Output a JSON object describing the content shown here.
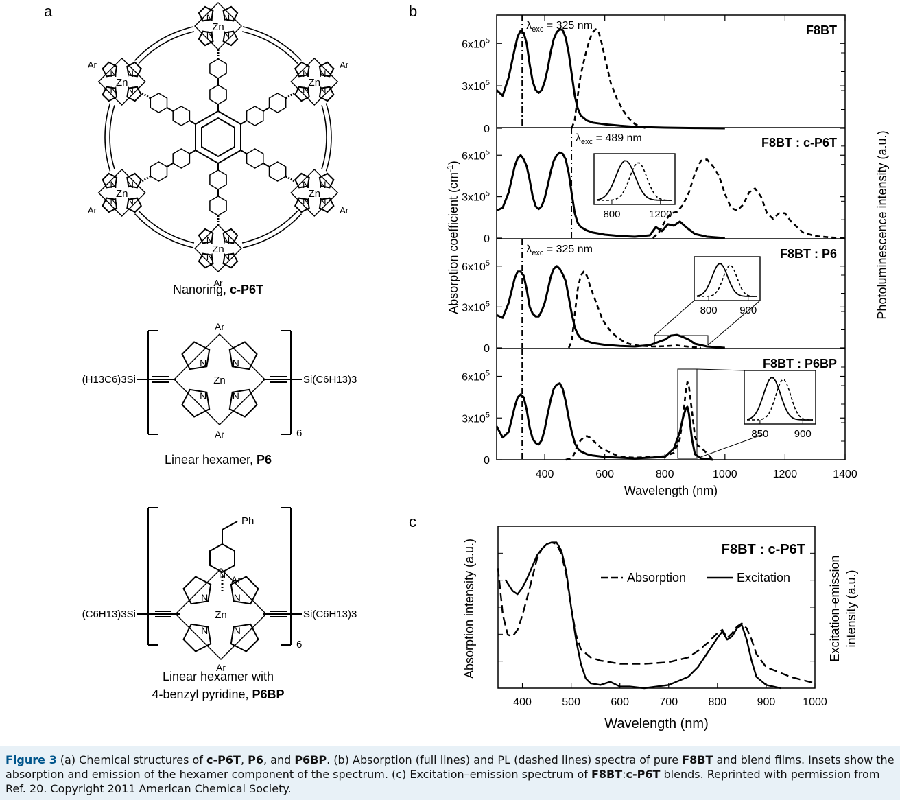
{
  "panels": {
    "a": {
      "letter": "a",
      "structures": [
        {
          "caption_text": "Nanoring, ",
          "caption_bold": "c-P6T"
        },
        {
          "caption_text": "Linear hexamer, ",
          "caption_bold": "P6"
        },
        {
          "caption_line1": "Linear hexamer with",
          "caption_text": "4-benzyl pyridine, ",
          "caption_bold": "P6BP"
        }
      ],
      "atoms": {
        "zn": "Zn",
        "n": "N",
        "ar": "Ar",
        "ph": "Ph",
        "repeat": "6"
      },
      "p6_left_group": "(H13C6)3Si",
      "p6_right_group": "Si(C6H13)3",
      "p6bp_left_group": "(C6H13)3Si",
      "p6bp_right_group": "Si(C6H13)3"
    },
    "b": {
      "letter": "b",
      "ylabel_left": "Absorption coefficient  (cm",
      "ylabel_left_sup": "-1",
      "ylabel_right": "Photoluminescence intensity (a.u.)",
      "xlabel": "Wavelength (nm)"
    },
    "c": {
      "letter": "c"
    }
  },
  "chart_data": [
    {
      "id": "b",
      "type": "line",
      "xlabel": "Wavelength (nm)",
      "ylabel": "Absorption coefficient (cm-1)",
      "ylabel_right": "Photoluminescence intensity (a.u.)",
      "xlim": [
        240,
        1400
      ],
      "xticks": [
        400,
        600,
        800,
        1000,
        1200,
        1400
      ],
      "ylim": [
        0,
        800000
      ],
      "yticks": [
        {
          "v": 0,
          "label": "0"
        },
        {
          "v": 300000,
          "label": "3x10",
          "sup": "5"
        },
        {
          "v": 600000,
          "label": "6x10",
          "sup": "5"
        }
      ],
      "legend": "none",
      "subpanels": [
        {
          "label": "F8BT",
          "excitation_label": "λexc = 325 nm",
          "excitation_nm": 325,
          "series": [
            {
              "style": "solid",
              "x": [
                240,
                260,
                280,
                300,
                310,
                320,
                330,
                340,
                350,
                360,
                370,
                380,
                390,
                400,
                410,
                420,
                430,
                440,
                450,
                460,
                470,
                480,
                490,
                500,
                510,
                520,
                540,
                560,
                600,
                650,
                700,
                800,
                900,
                1000
              ],
              "y": [
                270000,
                230000,
                360000,
                560000,
                650000,
                690000,
                675000,
                600000,
                450000,
                330000,
                270000,
                250000,
                270000,
                330000,
                420000,
                540000,
                630000,
                680000,
                700000,
                695000,
                640000,
                530000,
                380000,
                230000,
                140000,
                90000,
                55000,
                40000,
                28000,
                18000,
                10000,
                5000,
                2000,
                0
              ]
            },
            {
              "style": "dashed",
              "x": [
                490,
                500,
                510,
                520,
                530,
                540,
                550,
                560,
                570,
                580,
                590,
                600,
                610,
                620,
                640,
                660,
                680,
                700,
                720,
                740
              ],
              "y": [
                0,
                60000,
                230000,
                380000,
                470000,
                560000,
                630000,
                680000,
                700000,
                680000,
                600000,
                500000,
                410000,
                320000,
                210000,
                130000,
                70000,
                30000,
                10000,
                0
              ]
            }
          ]
        },
        {
          "label": "F8BT : c-P6T",
          "excitation_label": "λexc = 489 nm",
          "excitation_nm": 489,
          "series": [
            {
              "style": "solid",
              "x": [
                240,
                260,
                280,
                300,
                310,
                320,
                330,
                340,
                350,
                360,
                370,
                380,
                390,
                400,
                410,
                420,
                430,
                440,
                450,
                460,
                470,
                480,
                490,
                500,
                510,
                520,
                540,
                560,
                600,
                650,
                700,
                750,
                770,
                790,
                810,
                830,
                850,
                870,
                900,
                940,
                1000
              ],
              "y": [
                200000,
                220000,
                330000,
                520000,
                580000,
                600000,
                570000,
                520000,
                420000,
                300000,
                230000,
                210000,
                230000,
                290000,
                380000,
                480000,
                560000,
                600000,
                620000,
                610000,
                570000,
                470000,
                320000,
                180000,
                110000,
                80000,
                55000,
                40000,
                25000,
                15000,
                10000,
                20000,
                80000,
                50000,
                100000,
                90000,
                120000,
                80000,
                30000,
                10000,
                0
              ]
            },
            {
              "style": "dashed",
              "x": [
                760,
                780,
                800,
                820,
                840,
                860,
                880,
                900,
                920,
                940,
                960,
                980,
                1000,
                1020,
                1040,
                1060,
                1080,
                1100,
                1120,
                1140,
                1160,
                1180,
                1200,
                1220,
                1260,
                1300,
                1350,
                1400
              ],
              "y": [
                0,
                40000,
                120000,
                180000,
                190000,
                240000,
                330000,
                470000,
                560000,
                570000,
                520000,
                450000,
                320000,
                220000,
                200000,
                240000,
                330000,
                360000,
                300000,
                180000,
                140000,
                180000,
                180000,
                120000,
                40000,
                15000,
                5000,
                0
              ]
            }
          ],
          "inset": {
            "xticks": [
              800,
              1200
            ]
          }
        },
        {
          "label": "F8BT : P6",
          "excitation_label": "λexc = 325 nm",
          "excitation_nm": 325,
          "series": [
            {
              "style": "solid",
              "x": [
                240,
                260,
                280,
                300,
                310,
                320,
                330,
                340,
                350,
                360,
                370,
                380,
                390,
                400,
                410,
                420,
                430,
                440,
                450,
                460,
                470,
                480,
                490,
                500,
                510,
                520,
                540,
                560,
                600,
                650,
                700,
                750,
                780,
                800,
                820,
                840,
                860,
                880,
                900,
                940,
                1000
              ],
              "y": [
                240000,
                220000,
                330000,
                510000,
                560000,
                560000,
                530000,
                430000,
                300000,
                250000,
                230000,
                230000,
                270000,
                330000,
                420000,
                520000,
                580000,
                600000,
                580000,
                540000,
                490000,
                370000,
                250000,
                150000,
                100000,
                70000,
                50000,
                35000,
                22000,
                14000,
                10000,
                20000,
                45000,
                60000,
                90000,
                95000,
                80000,
                60000,
                30000,
                10000,
                0
              ]
            },
            {
              "style": "dashed",
              "x": [
                480,
                490,
                500,
                510,
                520,
                530,
                540,
                550,
                560,
                570,
                580,
                590,
                600,
                620,
                640,
                660,
                680,
                700,
                720,
                760,
                800,
                840,
                880,
                920
              ],
              "y": [
                0,
                50000,
                250000,
                430000,
                530000,
                560000,
                530000,
                460000,
                400000,
                340000,
                280000,
                220000,
                180000,
                120000,
                80000,
                50000,
                30000,
                20000,
                15000,
                10000,
                12000,
                18000,
                8000,
                0
              ]
            }
          ],
          "inset": {
            "xticks": [
              800,
              900
            ]
          }
        },
        {
          "label": "F8BT : P6BP",
          "excitation_label": "",
          "excitation_nm": 325,
          "series": [
            {
              "style": "solid",
              "x": [
                240,
                260,
                280,
                300,
                310,
                320,
                330,
                340,
                350,
                360,
                370,
                380,
                390,
                400,
                410,
                420,
                430,
                440,
                450,
                460,
                470,
                480,
                490,
                500,
                510,
                520,
                540,
                560,
                600,
                650,
                700,
                750,
                800,
                830,
                850,
                860,
                870,
                875,
                880,
                890,
                900,
                920,
                960
              ],
              "y": [
                240000,
                160000,
                200000,
                380000,
                450000,
                470000,
                450000,
                360000,
                230000,
                150000,
                120000,
                110000,
                140000,
                220000,
                330000,
                430000,
                510000,
                540000,
                550000,
                510000,
                420000,
                300000,
                200000,
                120000,
                80000,
                60000,
                40000,
                30000,
                20000,
                15000,
                10000,
                15000,
                20000,
                80000,
                200000,
                300000,
                370000,
                380000,
                330000,
                150000,
                40000,
                10000,
                0
              ]
            },
            {
              "style": "dashed",
              "x": [
                470,
                490,
                500,
                510,
                520,
                530,
                540,
                550,
                560,
                570,
                580,
                590,
                600,
                620,
                640,
                660,
                700,
                750,
                800,
                830,
                850,
                860,
                870,
                875,
                880,
                890,
                900,
                910,
                920,
                960
              ],
              "y": [
                0,
                10000,
                50000,
                110000,
                140000,
                160000,
                170000,
                160000,
                140000,
                120000,
                100000,
                80000,
                70000,
                50000,
                30000,
                20000,
                15000,
                20000,
                25000,
                50000,
                150000,
                300000,
                500000,
                560000,
                530000,
                350000,
                170000,
                100000,
                90000,
                0
              ]
            }
          ],
          "inset": {
            "xticks": [
              850,
              900
            ]
          }
        }
      ]
    },
    {
      "id": "c",
      "type": "line",
      "title": "F8BT : c-P6T",
      "xlabel": "Wavelength (nm)",
      "ylabel": "Absorption intensity (a.u.)",
      "ylabel_right": "Excitation-emission intensity (a.u.)",
      "xlim": [
        350,
        1000
      ],
      "xticks": [
        400,
        500,
        600,
        700,
        800,
        900,
        1000
      ],
      "legend": "top-right",
      "series": [
        {
          "name": "Absorption",
          "style": "dashed",
          "x": [
            350,
            360,
            370,
            380,
            390,
            400,
            410,
            420,
            430,
            440,
            450,
            460,
            470,
            480,
            490,
            500,
            510,
            520,
            540,
            560,
            580,
            600,
            650,
            700,
            740,
            760,
            780,
            800,
            810,
            820,
            830,
            840,
            850,
            860,
            870,
            880,
            900,
            950,
            1000
          ],
          "y": [
            0.74,
            0.45,
            0.33,
            0.32,
            0.36,
            0.45,
            0.56,
            0.68,
            0.8,
            0.86,
            0.89,
            0.9,
            0.89,
            0.83,
            0.7,
            0.5,
            0.33,
            0.24,
            0.19,
            0.17,
            0.16,
            0.15,
            0.15,
            0.16,
            0.19,
            0.23,
            0.28,
            0.34,
            0.36,
            0.31,
            0.34,
            0.38,
            0.4,
            0.37,
            0.3,
            0.21,
            0.13,
            0.07,
            0.03
          ]
        },
        {
          "name": "Excitation",
          "style": "solid",
          "x": [
            365,
            380,
            390,
            400,
            410,
            420,
            430,
            440,
            450,
            460,
            470,
            480,
            490,
            500,
            510,
            520,
            530,
            540,
            560,
            580,
            600,
            620,
            650,
            700,
            740,
            760,
            780,
            800,
            810,
            820,
            830,
            840,
            850,
            860,
            870,
            880,
            900,
            930
          ],
          "y": [
            0.67,
            0.6,
            0.58,
            0.62,
            0.68,
            0.75,
            0.82,
            0.86,
            0.89,
            0.9,
            0.9,
            0.85,
            0.72,
            0.5,
            0.3,
            0.15,
            0.06,
            0.03,
            0.02,
            0.04,
            0.01,
            0.01,
            0.0,
            0.02,
            0.07,
            0.13,
            0.22,
            0.31,
            0.35,
            0.3,
            0.32,
            0.37,
            0.39,
            0.3,
            0.17,
            0.07,
            0.02,
            0.0
          ]
        }
      ]
    }
  ],
  "caption": {
    "label": "Figure 3",
    "parts": [
      {
        "t": "  (a) Chemical structures of "
      },
      {
        "t": "c-P6T",
        "b": true
      },
      {
        "t": ", "
      },
      {
        "t": "P6",
        "b": true
      },
      {
        "t": ", and "
      },
      {
        "t": "P6BP",
        "b": true
      },
      {
        "t": ". (b) Absorption (full lines) and PL (dashed lines) spectra of pure "
      },
      {
        "t": "F8BT",
        "b": true
      },
      {
        "t": " and blend films. Insets show the absorption and emission of the hexamer component of the spectrum. (c) Excitation–emission spectrum of "
      },
      {
        "t": "F8BT",
        "b": true
      },
      {
        "t": ":"
      },
      {
        "t": "c-P6T",
        "b": true
      },
      {
        "t": " blends. Reprinted with permission from Ref. 20. Copyright 2011 American Chemical Society."
      }
    ]
  }
}
